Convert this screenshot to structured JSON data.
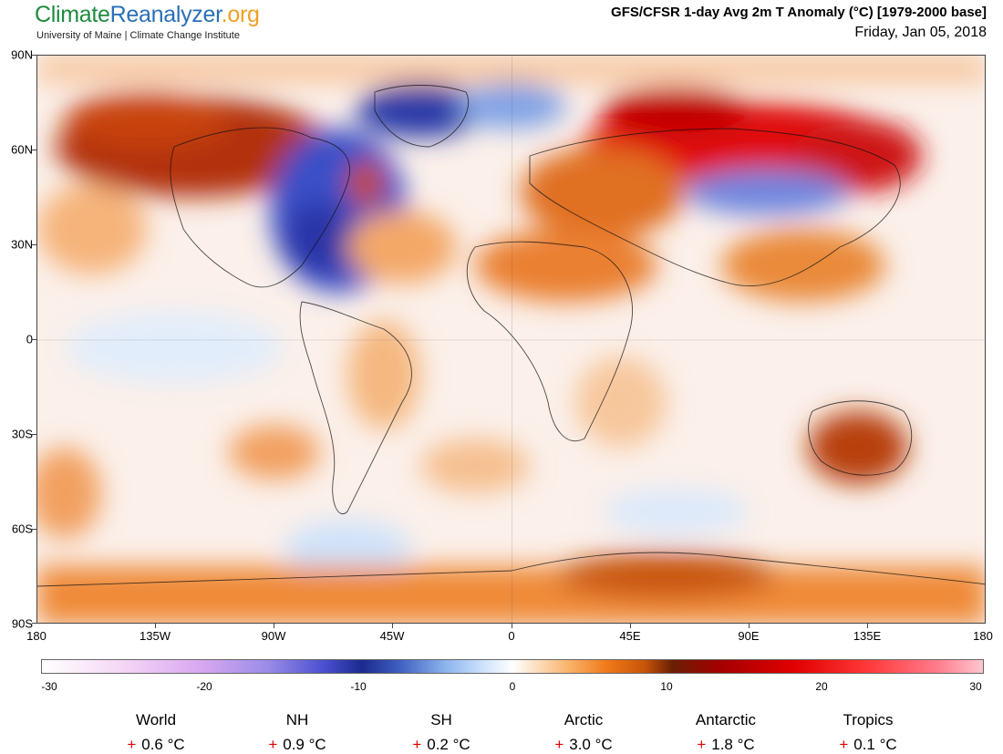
{
  "logo": {
    "part1": "Climate",
    "part2": "Reanalyzer",
    "part3": ".org"
  },
  "subtitle": "University of Maine | Climate Change Institute",
  "title": "GFS/CFSR 1-day Avg 2m T Anomaly (°C) [1979-2000 base]",
  "date": "Friday, Jan 05, 2018",
  "lat_labels": [
    "90N",
    "60N",
    "30N",
    "0",
    "30S",
    "60S",
    "90S"
  ],
  "lon_labels": [
    "180",
    "135W",
    "90W",
    "45W",
    "0",
    "45E",
    "90E",
    "135E",
    "180"
  ],
  "colorbar": {
    "labels": [
      "-30",
      "-20",
      "-10",
      "0",
      "10",
      "20",
      "30"
    ]
  },
  "stats": [
    {
      "name": "World",
      "sign": "+",
      "value": "0.6 °C"
    },
    {
      "name": "NH",
      "sign": "+",
      "value": "0.9 °C"
    },
    {
      "name": "SH",
      "sign": "+",
      "value": "0.2 °C"
    },
    {
      "name": "Arctic",
      "sign": "+",
      "value": "3.0 °C"
    },
    {
      "name": "Antarctic",
      "sign": "+",
      "value": "1.8 °C"
    },
    {
      "name": "Tropics",
      "sign": "+",
      "value": "0.1 °C"
    }
  ]
}
